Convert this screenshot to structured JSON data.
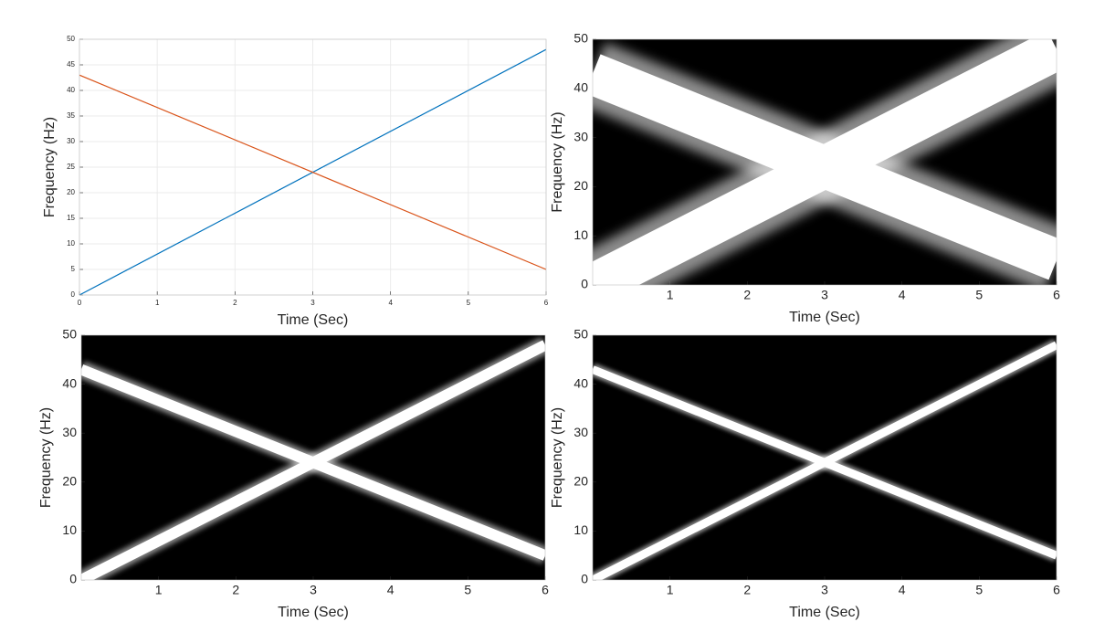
{
  "chart_data": [
    {
      "type": "line",
      "xlabel": "Time (Sec)",
      "ylabel": "Frequency (Hz)",
      "x": [
        0,
        6
      ],
      "series": [
        {
          "color": "#0072bd",
          "values": [
            0,
            48
          ]
        },
        {
          "color": "#d95319",
          "values": [
            43,
            5
          ]
        }
      ],
      "xlim": [
        0,
        6
      ],
      "ylim": [
        0,
        50
      ],
      "xticks": [
        0,
        1,
        2,
        3,
        4,
        5,
        6
      ],
      "yticks": [
        0,
        5,
        10,
        15,
        20,
        25,
        30,
        35,
        40,
        45,
        50
      ],
      "grid": true
    },
    {
      "type": "spectrogram",
      "xlabel": "Time (Sec)",
      "ylabel": "Frequency (Hz)",
      "x": [
        0,
        6
      ],
      "series": [
        {
          "color": "#ffffff",
          "values": [
            0,
            48
          ]
        },
        {
          "color": "#ffffff",
          "values": [
            43,
            5
          ]
        }
      ],
      "xlim": [
        0,
        6
      ],
      "ylim": [
        0,
        50
      ],
      "xticks": [
        1,
        2,
        3,
        4,
        5,
        6
      ],
      "yticks": [
        0,
        10,
        20,
        30,
        40,
        50
      ],
      "grid": false
    },
    {
      "type": "spectrogram",
      "xlabel": "Time (Sec)",
      "ylabel": "Frequency (Hz)",
      "x": [
        0,
        6
      ],
      "series": [
        {
          "color": "#ffffff",
          "values": [
            0,
            48
          ]
        },
        {
          "color": "#ffffff",
          "values": [
            43,
            5
          ]
        }
      ],
      "xlim": [
        0,
        6
      ],
      "ylim": [
        0,
        50
      ],
      "xticks": [
        1,
        2,
        3,
        4,
        5,
        6
      ],
      "yticks": [
        0,
        10,
        20,
        30,
        40,
        50
      ],
      "grid": false
    },
    {
      "type": "spectrogram",
      "xlabel": "Time (Sec)",
      "ylabel": "Frequency (Hz)",
      "x": [
        0,
        6
      ],
      "series": [
        {
          "color": "#ffffff",
          "values": [
            0,
            48
          ]
        },
        {
          "color": "#ffffff",
          "values": [
            43,
            5
          ]
        }
      ],
      "xlim": [
        0,
        6
      ],
      "ylim": [
        0,
        50
      ],
      "xticks": [
        1,
        2,
        3,
        4,
        5,
        6
      ],
      "yticks": [
        0,
        10,
        20,
        30,
        40,
        50
      ],
      "grid": false
    }
  ]
}
